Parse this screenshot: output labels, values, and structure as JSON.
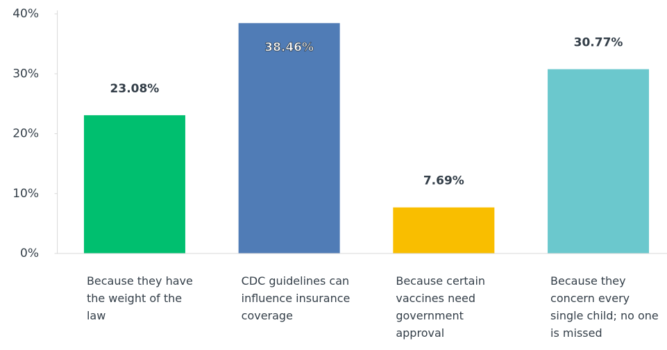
{
  "chart_data": {
    "type": "bar",
    "categories": [
      "Because they have the weight of the law",
      "CDC guidelines can influence insurance coverage",
      "Because certain vaccines need government approval",
      "Because they concern every single child; no one is missed"
    ],
    "values": [
      23.08,
      38.46,
      7.69,
      30.77
    ],
    "value_labels": [
      "23.08%",
      "38.46%",
      "7.69%",
      "30.77%"
    ],
    "colors": [
      "#00bf6f",
      "#507cb6",
      "#f9be00",
      "#6bc8cd"
    ],
    "ylim": [
      0,
      40
    ],
    "yticks": [
      {
        "value": 0,
        "label": "0%"
      },
      {
        "value": 10,
        "label": "10%"
      },
      {
        "value": 20,
        "label": "20%"
      },
      {
        "value": 30,
        "label": "30%"
      },
      {
        "value": 40,
        "label": "40%"
      }
    ],
    "grid": false
  }
}
